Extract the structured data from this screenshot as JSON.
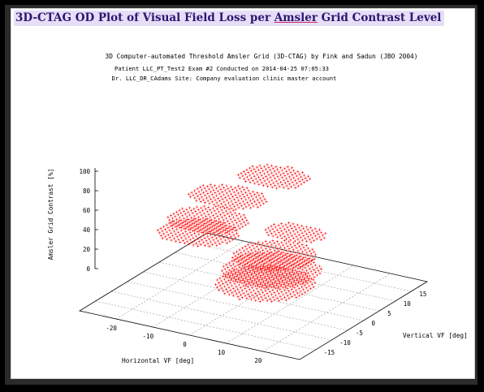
{
  "page": {
    "title_before": "3D-CTAG OD Plot of Visual Field Loss per ",
    "title_link": "Amsler",
    "title_after": " Grid Contrast Level"
  },
  "chart_data": {
    "type": "scatter",
    "mode": "3d",
    "title": "3D Computer-automated Threshold Amsler Grid (3D-CTAG) by Fink and Sadun (JBO 2004)",
    "subtitle_1": "Patient LLC_PT_Test2  Exam #2  Conducted on 2014-04-25 07:05:33",
    "subtitle_2": "Dr. LLC_DR_CAdams  Site: Company evaluation clinic master account",
    "xlabel": "Horizontal VF [deg]",
    "ylabel": "Vertical VF [deg]",
    "zlabel": "Amsler Grid Contrast [%]",
    "xlim": [
      -30,
      30
    ],
    "ylim": [
      -20,
      20
    ],
    "zlim": [
      0,
      100
    ],
    "x_ticks": [
      "-20",
      "-10",
      "0",
      "10",
      "20"
    ],
    "y_ticks": [
      "-15",
      "-10",
      "-5",
      "0",
      "5",
      "10",
      "15"
    ],
    "z_ticks": [
      "0",
      "20",
      "40",
      "60",
      "80",
      "100"
    ],
    "grid": true,
    "marker_color": "#ff0000",
    "series": [
      {
        "surfaces": [
          {
            "z": 100,
            "cx": -3,
            "cy": 10,
            "rx": 9,
            "ry": 5
          },
          {
            "z": 80,
            "cx": -12,
            "cy": 6,
            "rx": 10,
            "ry": 5
          },
          {
            "z": 80,
            "cx": 13,
            "cy": -2,
            "rx": 8,
            "ry": 4
          },
          {
            "z": 60,
            "cx": -15,
            "cy": 3,
            "rx": 10,
            "ry": 6
          },
          {
            "z": 60,
            "cx": 10,
            "cy": -5,
            "rx": 10,
            "ry": 7
          },
          {
            "z": 50,
            "cx": -16,
            "cy": 1,
            "rx": 10,
            "ry": 6
          },
          {
            "z": 50,
            "cx": 11,
            "cy": -7,
            "rx": 12,
            "ry": 8
          },
          {
            "z": 40,
            "cx": 11,
            "cy": -9,
            "rx": 12,
            "ry": 8
          }
        ]
      }
    ]
  }
}
